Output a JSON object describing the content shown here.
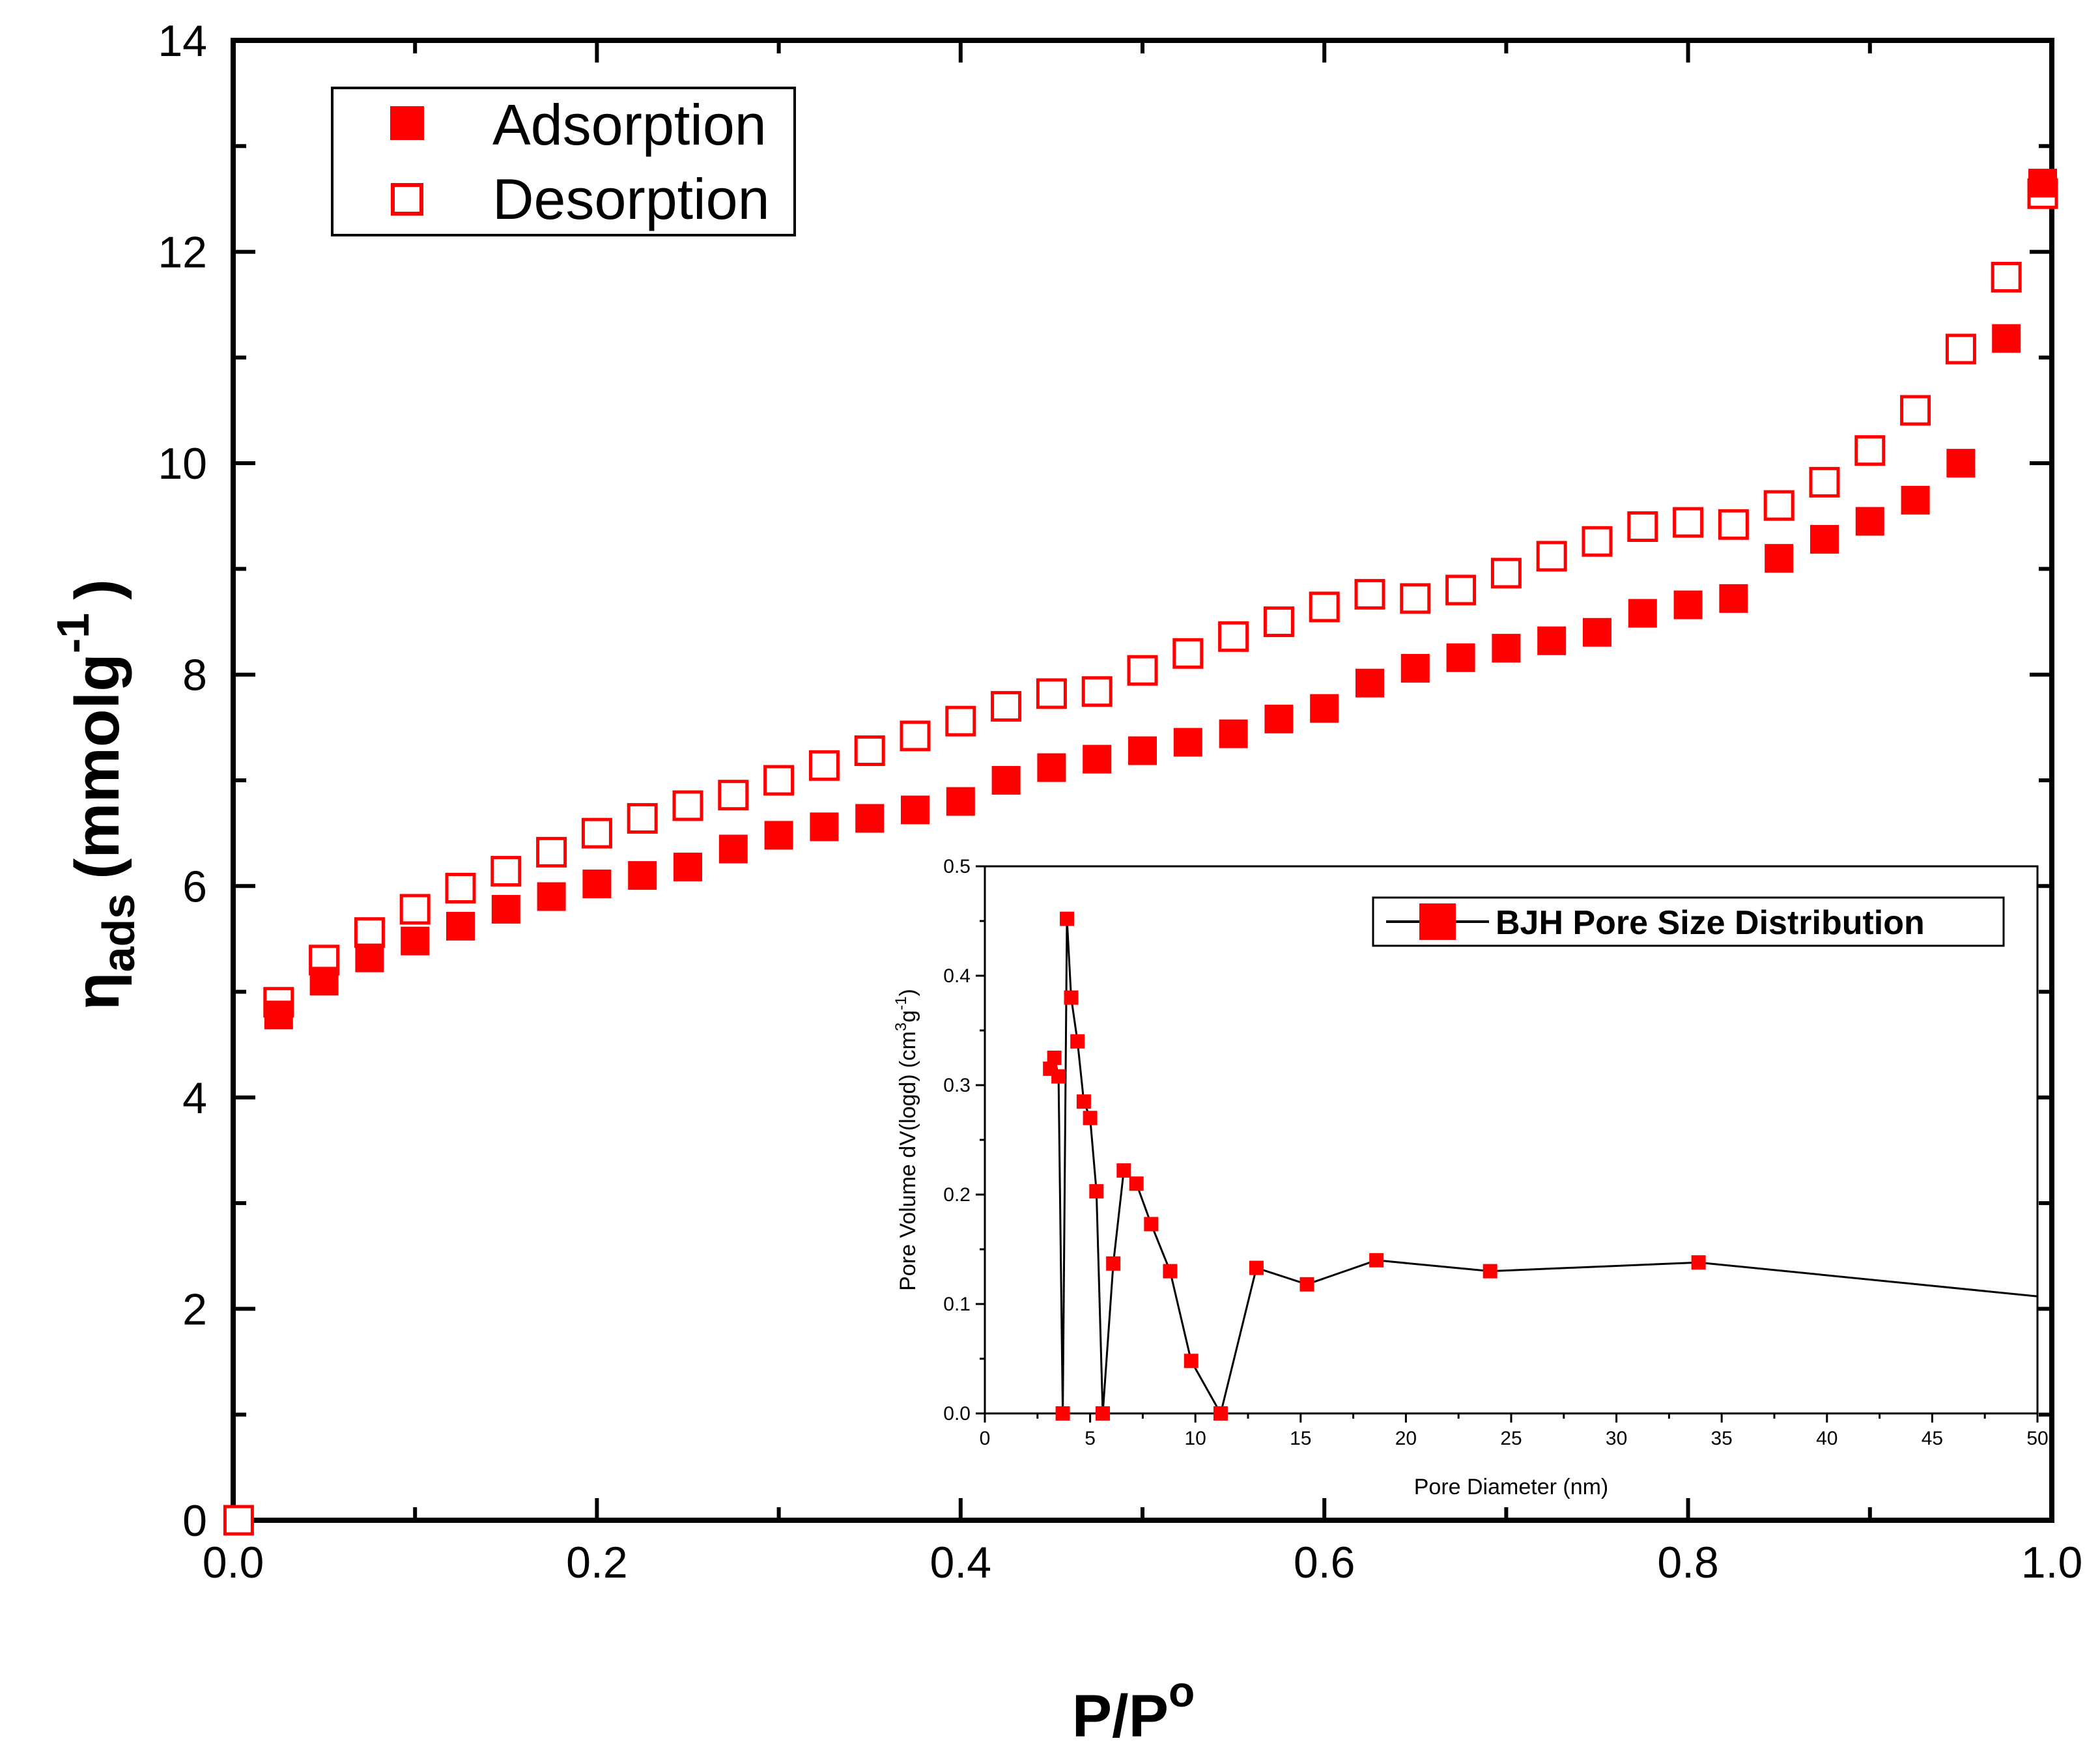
{
  "chart_data": [
    {
      "type": "scatter",
      "name": "main",
      "xlabel": "P/P",
      "xlabel_sup": "o",
      "ylabel_main": "η",
      "ylabel_sub": "ads",
      "ylabel_unit": "(mmolg",
      "ylabel_unit_sup": "-1",
      "ylabel_close": ")",
      "xlim": [
        0.0,
        1.0
      ],
      "ylim": [
        0,
        14
      ],
      "xticks": [
        0.0,
        0.2,
        0.4,
        0.6,
        0.8,
        1.0
      ],
      "xtick_labels": [
        "0.0",
        "0.2",
        "0.4",
        "0.6",
        "0.8",
        "1.0"
      ],
      "yticks": [
        0,
        2,
        4,
        6,
        8,
        10,
        12,
        14
      ],
      "ytick_labels": [
        "0",
        "2",
        "4",
        "6",
        "8",
        "10",
        "12",
        "14"
      ],
      "legend_position": "top-left",
      "series": [
        {
          "name": "Adsorption",
          "marker": "filled-square",
          "color": "#ff0000",
          "x": [
            0.025,
            0.05,
            0.075,
            0.1,
            0.125,
            0.15,
            0.175,
            0.2,
            0.225,
            0.25,
            0.275,
            0.3,
            0.325,
            0.35,
            0.375,
            0.4,
            0.425,
            0.45,
            0.475,
            0.5,
            0.525,
            0.55,
            0.575,
            0.6,
            0.625,
            0.65,
            0.675,
            0.7,
            0.725,
            0.75,
            0.775,
            0.8,
            0.825,
            0.85,
            0.875,
            0.9,
            0.925,
            0.95,
            0.975,
            0.995
          ],
          "y": [
            4.78,
            5.1,
            5.32,
            5.48,
            5.62,
            5.78,
            5.9,
            6.02,
            6.1,
            6.18,
            6.35,
            6.48,
            6.56,
            6.64,
            6.72,
            6.8,
            7.0,
            7.12,
            7.2,
            7.28,
            7.36,
            7.44,
            7.58,
            7.68,
            7.92,
            8.06,
            8.16,
            8.25,
            8.32,
            8.4,
            8.58,
            8.66,
            8.72,
            9.1,
            9.28,
            9.45,
            9.65,
            10.0,
            11.18,
            12.65
          ]
        },
        {
          "name": "Desorption",
          "marker": "open-square",
          "color": "#ff0000",
          "x": [
            0.003,
            0.025,
            0.05,
            0.075,
            0.1,
            0.125,
            0.15,
            0.175,
            0.2,
            0.225,
            0.25,
            0.275,
            0.3,
            0.325,
            0.35,
            0.375,
            0.4,
            0.425,
            0.45,
            0.475,
            0.5,
            0.525,
            0.55,
            0.575,
            0.6,
            0.625,
            0.65,
            0.675,
            0.7,
            0.725,
            0.75,
            0.775,
            0.8,
            0.825,
            0.85,
            0.875,
            0.9,
            0.925,
            0.95,
            0.975,
            0.995
          ],
          "y": [
            0.0,
            4.9,
            5.3,
            5.56,
            5.78,
            5.98,
            6.14,
            6.32,
            6.5,
            6.64,
            6.76,
            6.86,
            7.0,
            7.14,
            7.28,
            7.42,
            7.56,
            7.7,
            7.82,
            7.84,
            8.04,
            8.2,
            8.36,
            8.5,
            8.64,
            8.76,
            8.72,
            8.8,
            8.96,
            9.12,
            9.26,
            9.4,
            9.44,
            9.42,
            9.6,
            9.82,
            10.12,
            10.5,
            11.08,
            11.76,
            12.55
          ]
        }
      ]
    },
    {
      "type": "line",
      "name": "inset",
      "xlabel": "Pore Diameter (nm)",
      "ylabel_main": "Pore Volume dV(logd) (cm",
      "ylabel_sup1": "3",
      "ylabel_mid": "g",
      "ylabel_sup2": "-1",
      "ylabel_close": ")",
      "xlim": [
        0,
        50
      ],
      "ylim": [
        0.0,
        0.5
      ],
      "xticks": [
        0,
        5,
        10,
        15,
        20,
        25,
        30,
        35,
        40,
        45,
        50
      ],
      "xtick_labels": [
        "0",
        "5",
        "10",
        "15",
        "20",
        "25",
        "30",
        "35",
        "40",
        "45",
        "50"
      ],
      "yticks": [
        0.0,
        0.1,
        0.2,
        0.3,
        0.4,
        0.5
      ],
      "ytick_labels": [
        "0.0",
        "0.1",
        "0.2",
        "0.3",
        "0.4",
        "0.5"
      ],
      "legend_position": "top-right",
      "series": [
        {
          "name": "BJH Pore Size Distribution",
          "marker": "filled-square",
          "color": "#ff0000",
          "line_color": "#000000",
          "x": [
            3.1,
            3.3,
            3.5,
            3.7,
            3.9,
            4.1,
            4.4,
            4.7,
            5.0,
            5.3,
            5.6,
            6.1,
            6.6,
            7.2,
            7.9,
            8.8,
            9.8,
            11.2,
            12.9,
            15.3,
            18.6,
            24.0,
            33.9,
            50.0
          ],
          "y": [
            0.315,
            0.325,
            0.308,
            0.0,
            0.452,
            0.38,
            0.34,
            0.285,
            0.27,
            0.203,
            0.0,
            0.137,
            0.222,
            0.21,
            0.173,
            0.13,
            0.048,
            0.0,
            0.133,
            0.118,
            0.14,
            0.13,
            0.138,
            0.107
          ]
        }
      ]
    }
  ]
}
